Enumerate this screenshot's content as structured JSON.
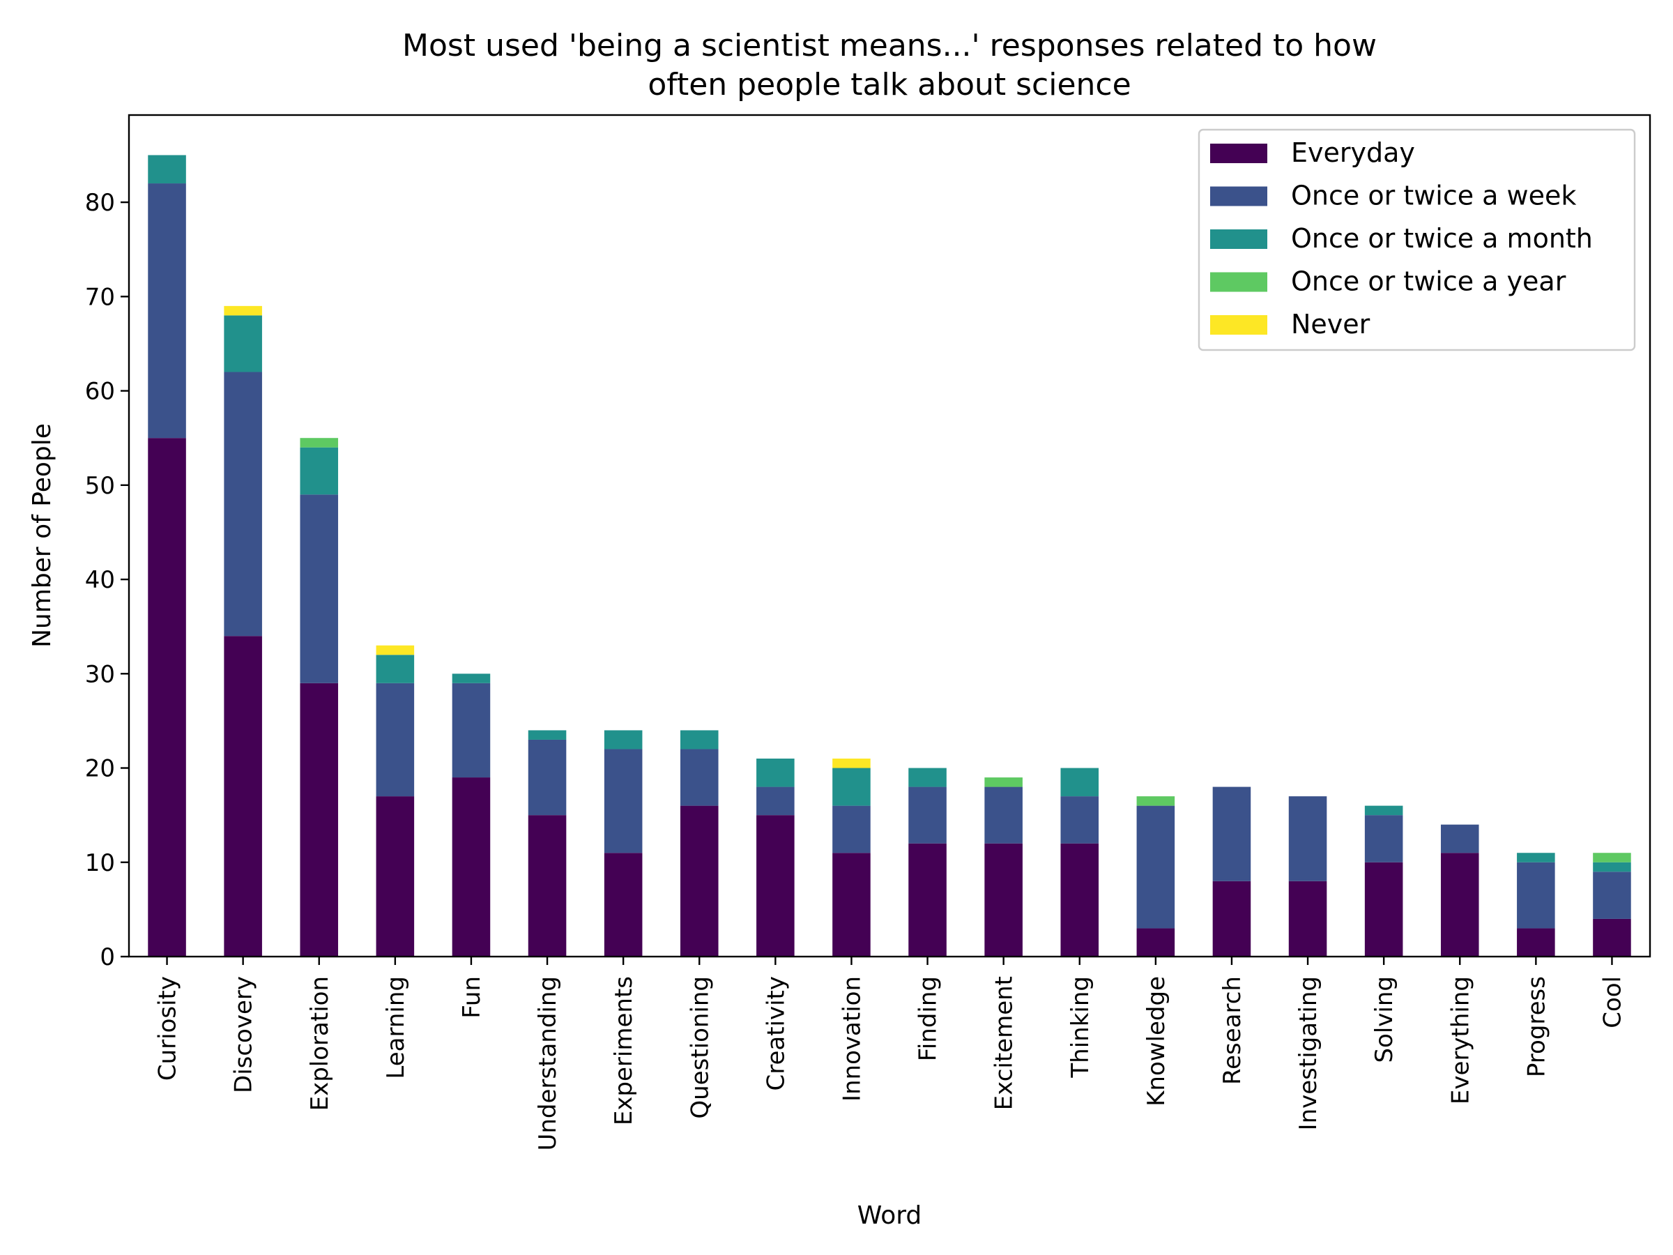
{
  "chart_data": {
    "type": "bar",
    "stacked": true,
    "title": "Most used 'being a scientist means...' responses related to how often people talk about science",
    "title_lines": [
      "Most used 'being a scientist means...' responses related to how",
      "often people talk about science"
    ],
    "xlabel": "Word",
    "ylabel": "Number of People",
    "ylim": [
      0,
      89.25
    ],
    "yticks": [
      0,
      10,
      20,
      30,
      40,
      50,
      60,
      70,
      80
    ],
    "grid": false,
    "legend_position": "top-right",
    "categories": [
      "Curiosity",
      "Discovery",
      "Exploration",
      "Learning",
      "Fun",
      "Understanding",
      "Experiments",
      "Questioning",
      "Creativity",
      "Innovation",
      "Finding",
      "Excitement",
      "Thinking",
      "Knowledge",
      "Research",
      "Investigating",
      "Solving",
      "Everything",
      "Progress",
      "Cool"
    ],
    "series": [
      {
        "name": "Everyday",
        "color": "#440154",
        "values": [
          55,
          34,
          29,
          17,
          19,
          15,
          11,
          16,
          15,
          11,
          12,
          12,
          12,
          3,
          8,
          8,
          10,
          11,
          3,
          4
        ]
      },
      {
        "name": "Once or twice a week",
        "color": "#3b528b",
        "values": [
          27,
          28,
          20,
          12,
          10,
          8,
          11,
          6,
          3,
          5,
          6,
          6,
          5,
          13,
          10,
          9,
          5,
          3,
          7,
          5
        ]
      },
      {
        "name": "Once or twice a month",
        "color": "#21918c",
        "values": [
          3,
          6,
          5,
          3,
          1,
          1,
          2,
          2,
          3,
          4,
          2,
          0,
          3,
          0,
          0,
          0,
          1,
          0,
          1,
          1
        ]
      },
      {
        "name": "Once or twice a year",
        "color": "#5ec962",
        "values": [
          0,
          0,
          1,
          0,
          0,
          0,
          0,
          0,
          0,
          0,
          0,
          1,
          0,
          1,
          0,
          0,
          0,
          0,
          0,
          1
        ]
      },
      {
        "name": "Never",
        "color": "#fde725",
        "values": [
          0,
          1,
          0,
          1,
          0,
          0,
          0,
          0,
          0,
          1,
          0,
          0,
          0,
          0,
          0,
          0,
          0,
          0,
          0,
          0
        ]
      }
    ]
  }
}
